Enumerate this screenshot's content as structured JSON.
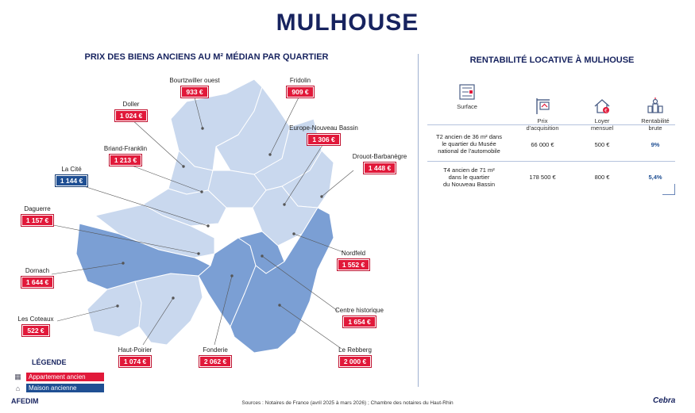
{
  "title": "MULHOUSE",
  "map_title": "PRIX DES BIENS ANCIENS AU M² MÉDIAN PAR QUARTIER",
  "rent_title": "RENTABILITÉ LOCATIVE À MULHOUSE",
  "colors": {
    "red": "#e1193a",
    "blue": "#1f4f93",
    "light_blue": "#c9d8ee",
    "mid_blue": "#7b9fd4",
    "navy": "#17235f"
  },
  "districts": [
    {
      "id": "bourtzwiller",
      "name": "Bourtzwiller ouest",
      "price": "933 €",
      "type": "appartement"
    },
    {
      "id": "fridolin",
      "name": "Fridolin",
      "price": "909 €",
      "type": "appartement"
    },
    {
      "id": "doller",
      "name": "Doller",
      "price": "1 024 €",
      "type": "appartement"
    },
    {
      "id": "europe",
      "name": "Europe-Nouveau Bassin",
      "price": "1 306 €",
      "type": "appartement"
    },
    {
      "id": "briand",
      "name": "Briand-Franklin",
      "price": "1 213 €",
      "type": "appartement"
    },
    {
      "id": "drouot",
      "name": "Drouot-Barbanègre",
      "price": "1 448 €",
      "type": "appartement"
    },
    {
      "id": "lacite",
      "name": "La Cité",
      "price": "1 144 €",
      "type": "maison"
    },
    {
      "id": "daguerre",
      "name": "Daguerre",
      "price": "1 157 €",
      "type": "appartement"
    },
    {
      "id": "nordfeld",
      "name": "Nordfeld",
      "price": "1 552 €",
      "type": "appartement"
    },
    {
      "id": "dornach",
      "name": "Dornach",
      "price": "1 644 €",
      "type": "appartement"
    },
    {
      "id": "centre",
      "name": "Centre historique",
      "price": "1 654 €",
      "type": "appartement"
    },
    {
      "id": "coteaux",
      "name": "Les Coteaux",
      "price": "522 €",
      "type": "appartement"
    },
    {
      "id": "hautpoirier",
      "name": "Haut-Poirier",
      "price": "1 074 €",
      "type": "appartement"
    },
    {
      "id": "fonderie",
      "name": "Fonderie",
      "price": "2 062 €",
      "type": "appartement"
    },
    {
      "id": "rebberg",
      "name": "Le Rebberg",
      "price": "2 000 €",
      "type": "appartement"
    }
  ],
  "legend": {
    "title": "LÉGENDE",
    "items": [
      {
        "label": "Appartement ancien",
        "icon": "building-icon",
        "color": "#e1193a"
      },
      {
        "label": "Maison ancienne",
        "icon": "house-icon",
        "color": "#1f4f93"
      }
    ]
  },
  "rent_table": {
    "headers": [
      {
        "label": "Surface",
        "icon": "blueprint-icon"
      },
      {
        "label": "Prix\nd'acquisition",
        "icon": "for-sale-sign-icon"
      },
      {
        "label": "Loyer\nmensuel",
        "icon": "house-euro-icon"
      },
      {
        "label": "Rentabilité\nbrute",
        "icon": "chess-pieces-icon"
      }
    ],
    "rows": [
      {
        "surface": "T2 ancien de 36 m² dans\nle quartier du Musée\nnational de l'automobile",
        "prix": "66 000 €",
        "loyer": "500 €",
        "rentabilite": "9%"
      },
      {
        "surface": "T4 ancien de 71 m²\ndans le quartier\ndu Nouveau Bassin",
        "prix": "178 500 €",
        "loyer": "800 €",
        "rentabilite": "5,4%"
      }
    ]
  },
  "sources": "Sources : Notaires de France (avril 2025 à mars 2026) ; Chambre des notaires du Haut-Rhin",
  "logo_left": "AFEDIM",
  "logo_right": "Cebra"
}
